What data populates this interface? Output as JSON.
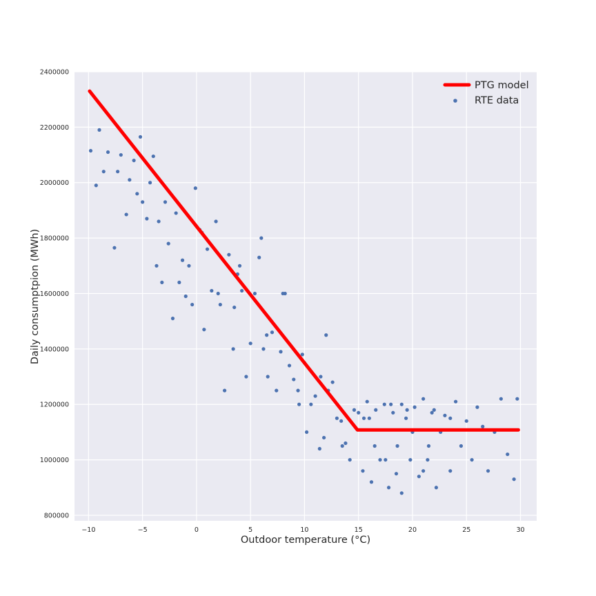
{
  "chart_data": {
    "type": "scatter",
    "xlabel": "Outdoor temperature (°C)",
    "ylabel": "Daily consumptpion (MWh)",
    "xlim": [
      -11.3,
      31.5
    ],
    "ylim": [
      780000,
      2400000
    ],
    "x_ticks": [
      -10,
      -5,
      0,
      5,
      10,
      15,
      20,
      25,
      30
    ],
    "x_tick_labels": [
      "−10",
      "−5",
      "0",
      "5",
      "10",
      "15",
      "20",
      "25",
      "30"
    ],
    "y_ticks": [
      800000,
      1000000,
      1200000,
      1400000,
      1600000,
      1800000,
      2000000,
      2200000,
      2400000
    ],
    "y_tick_labels": [
      "800000",
      "1000000",
      "1200000",
      "1400000",
      "1600000",
      "1800000",
      "2000000",
      "2200000",
      "2400000"
    ],
    "grid": true,
    "legend_position": "top-right",
    "series": [
      {
        "name": "PTG model",
        "kind": "line",
        "color": "#ff0000",
        "x": [
          -9.9,
          14.9,
          29.8
        ],
        "y": [
          2330000,
          1108000,
          1108000
        ]
      },
      {
        "name": "RTE data",
        "kind": "scatter",
        "color": "#4c72b0",
        "x": [
          -9.8,
          -9.3,
          -9.0,
          -8.6,
          -8.2,
          -7.6,
          -7.3,
          -7.0,
          -6.5,
          -6.2,
          -5.8,
          -5.5,
          -5.2,
          -5.0,
          -4.6,
          -4.3,
          -4.0,
          -3.7,
          -3.5,
          -3.2,
          -2.9,
          -2.6,
          -2.2,
          -1.9,
          -1.6,
          -1.3,
          -1.0,
          -0.7,
          -0.4,
          -0.1,
          0.3,
          0.7,
          1.0,
          1.4,
          1.8,
          2.2,
          2.6,
          3.0,
          3.4,
          3.8,
          4.2,
          4.6,
          5.0,
          5.4,
          5.8,
          6.2,
          6.6,
          7.0,
          7.4,
          7.8,
          8.2,
          8.6,
          9.0,
          9.4,
          9.8,
          10.2,
          10.6,
          11.0,
          11.4,
          11.8,
          12.2,
          12.6,
          13.0,
          13.4,
          13.8,
          14.2,
          14.6,
          15.0,
          15.4,
          15.8,
          16.2,
          16.6,
          17.0,
          17.4,
          17.8,
          18.2,
          18.6,
          19.0,
          19.4,
          19.8,
          20.2,
          20.6,
          21.0,
          21.4,
          21.8,
          22.2,
          22.6,
          23.0,
          23.5,
          24.0,
          24.5,
          25.0,
          25.5,
          26.0,
          26.5,
          27.0,
          27.6,
          28.2,
          28.8,
          29.4,
          29.7,
          2.0,
          4.0,
          6.0,
          8.0,
          10.0,
          12.0,
          0.5,
          3.5,
          6.5,
          9.5,
          11.5,
          13.5,
          16.5,
          18.5,
          21.5,
          23.5,
          16.0,
          18.0,
          20.0,
          22.0,
          17.5,
          19.5,
          15.5,
          21.0,
          19.0
        ],
        "y": [
          2115000,
          1990000,
          2190000,
          2040000,
          2110000,
          1765000,
          2040000,
          2100000,
          1885000,
          2010000,
          2080000,
          1960000,
          2165000,
          1930000,
          1870000,
          2000000,
          2095000,
          1700000,
          1860000,
          1640000,
          1930000,
          1780000,
          1510000,
          1890000,
          1640000,
          1720000,
          1590000,
          1700000,
          1560000,
          1980000,
          1830000,
          1470000,
          1760000,
          1610000,
          1860000,
          1560000,
          1250000,
          1740000,
          1400000,
          1670000,
          1610000,
          1300000,
          1420000,
          1600000,
          1730000,
          1400000,
          1300000,
          1460000,
          1250000,
          1390000,
          1600000,
          1340000,
          1290000,
          1250000,
          1380000,
          1100000,
          1200000,
          1230000,
          1040000,
          1080000,
          1250000,
          1280000,
          1150000,
          1140000,
          1060000,
          1000000,
          1180000,
          1170000,
          960000,
          1210000,
          920000,
          1180000,
          1000000,
          1200000,
          900000,
          1170000,
          1050000,
          880000,
          1150000,
          1000000,
          1190000,
          940000,
          1220000,
          1000000,
          1170000,
          900000,
          1100000,
          1160000,
          960000,
          1210000,
          1050000,
          1140000,
          1000000,
          1190000,
          1120000,
          960000,
          1100000,
          1220000,
          1020000,
          930000,
          1220000,
          1600000,
          1700000,
          1800000,
          1600000,
          1350000,
          1450000,
          1820000,
          1550000,
          1450000,
          1200000,
          1300000,
          1050000,
          1050000,
          950000,
          1050000,
          1150000,
          1150000,
          1200000,
          1100000,
          1180000,
          1000000,
          1180000,
          1150000,
          960000,
          1200000
        ]
      }
    ]
  }
}
